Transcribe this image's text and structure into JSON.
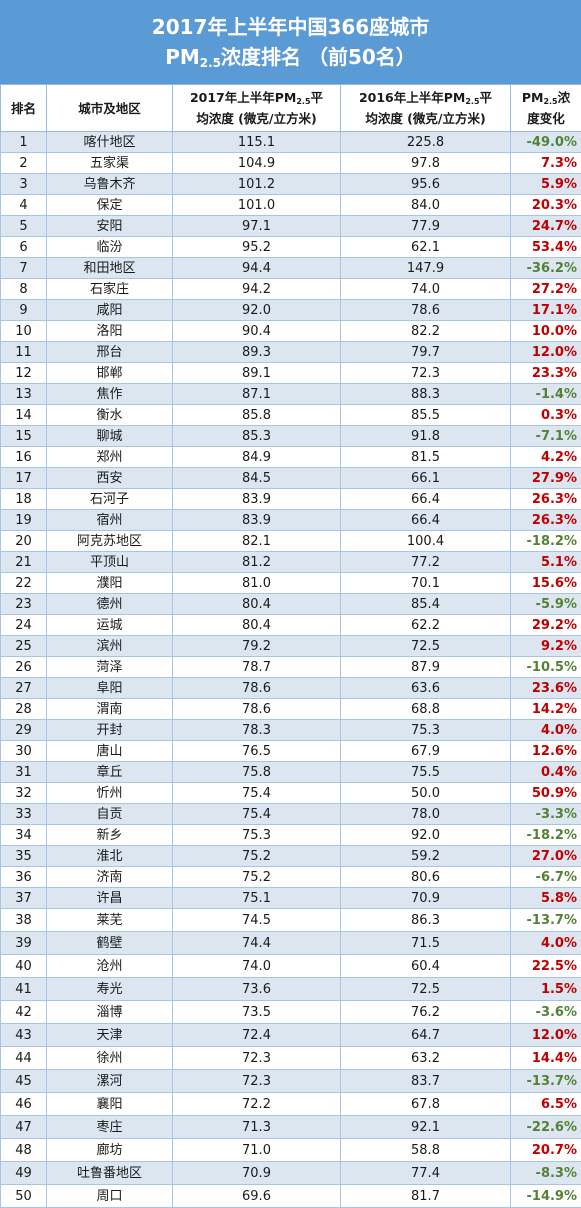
{
  "title": {
    "line1": "2017年上半年中国366座城市",
    "line2_main": "PM",
    "line2_sub": "2.5",
    "line2_rest": "浓度排名 （前50名）"
  },
  "headers": {
    "rank": "排名",
    "city": "城市及地区",
    "pm2017_a": "2017年上半年PM",
    "pm2017_sub": "2.5",
    "pm2017_b": "平",
    "pm2017_c": "均浓度 (微克/立方米)",
    "pm2016_a": "2016年上半年PM",
    "pm2016_sub": "2.5",
    "pm2016_b": "平",
    "pm2016_c": "均浓度 (微克/立方米)",
    "change_a": "PM",
    "change_sub": "2.5",
    "change_b": "浓",
    "change_c": "度变化"
  },
  "colors": {
    "increase": "#c00000",
    "decrease": "#548235",
    "title_bg": "#5b9bd5",
    "stripe": "#dce6f1"
  },
  "rows": [
    {
      "rank": "1",
      "city": "喀什地区",
      "v2017": "115.1",
      "v2016": "225.8",
      "change": "-49.0%"
    },
    {
      "rank": "2",
      "city": "五家渠",
      "v2017": "104.9",
      "v2016": "97.8",
      "change": "7.3%"
    },
    {
      "rank": "3",
      "city": "乌鲁木齐",
      "v2017": "101.2",
      "v2016": "95.6",
      "change": "5.9%"
    },
    {
      "rank": "4",
      "city": "保定",
      "v2017": "101.0",
      "v2016": "84.0",
      "change": "20.3%"
    },
    {
      "rank": "5",
      "city": "安阳",
      "v2017": "97.1",
      "v2016": "77.9",
      "change": "24.7%"
    },
    {
      "rank": "6",
      "city": "临汾",
      "v2017": "95.2",
      "v2016": "62.1",
      "change": "53.4%"
    },
    {
      "rank": "7",
      "city": "和田地区",
      "v2017": "94.4",
      "v2016": "147.9",
      "change": "-36.2%"
    },
    {
      "rank": "8",
      "city": "石家庄",
      "v2017": "94.2",
      "v2016": "74.0",
      "change": "27.2%"
    },
    {
      "rank": "9",
      "city": "咸阳",
      "v2017": "92.0",
      "v2016": "78.6",
      "change": "17.1%"
    },
    {
      "rank": "10",
      "city": "洛阳",
      "v2017": "90.4",
      "v2016": "82.2",
      "change": "10.0%"
    },
    {
      "rank": "11",
      "city": "邢台",
      "v2017": "89.3",
      "v2016": "79.7",
      "change": "12.0%"
    },
    {
      "rank": "12",
      "city": "邯郸",
      "v2017": "89.1",
      "v2016": "72.3",
      "change": "23.3%"
    },
    {
      "rank": "13",
      "city": "焦作",
      "v2017": "87.1",
      "v2016": "88.3",
      "change": "-1.4%"
    },
    {
      "rank": "14",
      "city": "衡水",
      "v2017": "85.8",
      "v2016": "85.5",
      "change": "0.3%"
    },
    {
      "rank": "15",
      "city": "聊城",
      "v2017": "85.3",
      "v2016": "91.8",
      "change": "-7.1%"
    },
    {
      "rank": "16",
      "city": "郑州",
      "v2017": "84.9",
      "v2016": "81.5",
      "change": "4.2%"
    },
    {
      "rank": "17",
      "city": "西安",
      "v2017": "84.5",
      "v2016": "66.1",
      "change": "27.9%"
    },
    {
      "rank": "18",
      "city": "石河子",
      "v2017": "83.9",
      "v2016": "66.4",
      "change": "26.3%"
    },
    {
      "rank": "19",
      "city": "宿州",
      "v2017": "83.9",
      "v2016": "66.4",
      "change": "26.3%"
    },
    {
      "rank": "20",
      "city": "阿克苏地区",
      "v2017": "82.1",
      "v2016": "100.4",
      "change": "-18.2%"
    },
    {
      "rank": "21",
      "city": "平顶山",
      "v2017": "81.2",
      "v2016": "77.2",
      "change": "5.1%"
    },
    {
      "rank": "22",
      "city": "濮阳",
      "v2017": "81.0",
      "v2016": "70.1",
      "change": "15.6%"
    },
    {
      "rank": "23",
      "city": "德州",
      "v2017": "80.4",
      "v2016": "85.4",
      "change": "-5.9%"
    },
    {
      "rank": "24",
      "city": "运城",
      "v2017": "80.4",
      "v2016": "62.2",
      "change": "29.2%"
    },
    {
      "rank": "25",
      "city": "滨州",
      "v2017": "79.2",
      "v2016": "72.5",
      "change": "9.2%"
    },
    {
      "rank": "26",
      "city": "菏泽",
      "v2017": "78.7",
      "v2016": "87.9",
      "change": "-10.5%"
    },
    {
      "rank": "27",
      "city": "阜阳",
      "v2017": "78.6",
      "v2016": "63.6",
      "change": "23.6%"
    },
    {
      "rank": "28",
      "city": "渭南",
      "v2017": "78.6",
      "v2016": "68.8",
      "change": "14.2%"
    },
    {
      "rank": "29",
      "city": "开封",
      "v2017": "78.3",
      "v2016": "75.3",
      "change": "4.0%"
    },
    {
      "rank": "30",
      "city": "唐山",
      "v2017": "76.5",
      "v2016": "67.9",
      "change": "12.6%"
    },
    {
      "rank": "31",
      "city": "章丘",
      "v2017": "75.8",
      "v2016": "75.5",
      "change": "0.4%"
    },
    {
      "rank": "32",
      "city": "忻州",
      "v2017": "75.4",
      "v2016": "50.0",
      "change": "50.9%"
    },
    {
      "rank": "33",
      "city": "自贡",
      "v2017": "75.4",
      "v2016": "78.0",
      "change": "-3.3%"
    },
    {
      "rank": "34",
      "city": "新乡",
      "v2017": "75.3",
      "v2016": "92.0",
      "change": "-18.2%"
    },
    {
      "rank": "35",
      "city": "淮北",
      "v2017": "75.2",
      "v2016": "59.2",
      "change": "27.0%"
    },
    {
      "rank": "36",
      "city": "济南",
      "v2017": "75.2",
      "v2016": "80.6",
      "change": "-6.7%"
    },
    {
      "rank": "37",
      "city": "许昌",
      "v2017": "75.1",
      "v2016": "70.9",
      "change": "5.8%"
    },
    {
      "rank": "38",
      "city": "莱芜",
      "v2017": "74.5",
      "v2016": "86.3",
      "change": "-13.7%"
    },
    {
      "rank": "39",
      "city": "鹤壁",
      "v2017": "74.4",
      "v2016": "71.5",
      "change": "4.0%"
    },
    {
      "rank": "40",
      "city": "沧州",
      "v2017": "74.0",
      "v2016": "60.4",
      "change": "22.5%"
    },
    {
      "rank": "41",
      "city": "寿光",
      "v2017": "73.6",
      "v2016": "72.5",
      "change": "1.5%"
    },
    {
      "rank": "42",
      "city": "淄博",
      "v2017": "73.5",
      "v2016": "76.2",
      "change": "-3.6%"
    },
    {
      "rank": "43",
      "city": "天津",
      "v2017": "72.4",
      "v2016": "64.7",
      "change": "12.0%"
    },
    {
      "rank": "44",
      "city": "徐州",
      "v2017": "72.3",
      "v2016": "63.2",
      "change": "14.4%"
    },
    {
      "rank": "45",
      "city": "漯河",
      "v2017": "72.3",
      "v2016": "83.7",
      "change": "-13.7%"
    },
    {
      "rank": "46",
      "city": "襄阳",
      "v2017": "72.2",
      "v2016": "67.8",
      "change": "6.5%"
    },
    {
      "rank": "47",
      "city": "枣庄",
      "v2017": "71.3",
      "v2016": "92.1",
      "change": "-22.6%"
    },
    {
      "rank": "48",
      "city": "廊坊",
      "v2017": "71.0",
      "v2016": "58.8",
      "change": "20.7%"
    },
    {
      "rank": "49",
      "city": "吐鲁番地区",
      "v2017": "70.9",
      "v2016": "77.4",
      "change": "-8.3%"
    },
    {
      "rank": "50",
      "city": "周口",
      "v2017": "69.6",
      "v2016": "81.7",
      "change": "-14.9%"
    }
  ]
}
